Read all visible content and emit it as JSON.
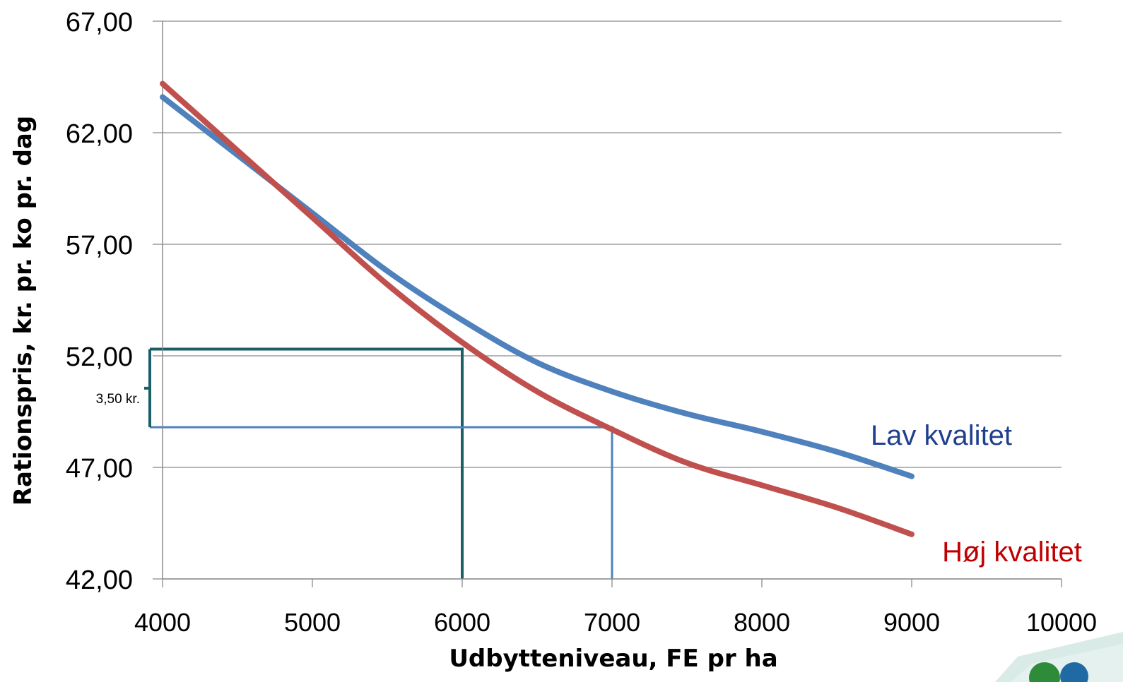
{
  "chart_data": {
    "type": "line",
    "xlabel": "Udbytteniveau, FE pr ha",
    "ylabel": "Rationspris, kr. pr. ko  pr. dag",
    "xlim": [
      4000,
      10000
    ],
    "ylim": [
      42,
      67
    ],
    "x_ticks": [
      "4000",
      "5000",
      "6000",
      "7000",
      "8000",
      "9000",
      "10000"
    ],
    "x_tick_values": [
      4000,
      5000,
      6000,
      7000,
      8000,
      9000,
      10000
    ],
    "y_ticks": [
      "42,00",
      "47,00",
      "52,00",
      "57,00",
      "62,00",
      "67,00"
    ],
    "y_tick_values": [
      42,
      47,
      52,
      57,
      62,
      67
    ],
    "grid": "horizontal",
    "series": [
      {
        "name": "Lav kvalitet",
        "color": "#4f81bd",
        "label_color": "#1f3f8f",
        "x": [
          4000,
          4500,
          5000,
          5500,
          6000,
          6500,
          7000,
          7500,
          8000,
          8500,
          9000
        ],
        "y": [
          63.6,
          61.0,
          58.4,
          55.8,
          53.6,
          51.7,
          50.4,
          49.4,
          48.6,
          47.7,
          46.6
        ]
      },
      {
        "name": "Høj kvalitet",
        "color": "#c0504d",
        "label_color": "#c00000",
        "x": [
          4000,
          4500,
          5000,
          5500,
          6000,
          6500,
          7000,
          7500,
          8000,
          8500,
          9000
        ],
        "y": [
          64.2,
          61.2,
          58.2,
          55.2,
          52.6,
          50.4,
          48.7,
          47.2,
          46.2,
          45.2,
          44.0
        ]
      }
    ],
    "annotations": {
      "green_guide": {
        "color": "#1a5e66",
        "x": 6000,
        "y": 52.3
      },
      "blue_guide": {
        "color": "#4f81bd",
        "x": 7000,
        "y": 48.8
      },
      "bracket_label": "3,50 kr."
    }
  }
}
